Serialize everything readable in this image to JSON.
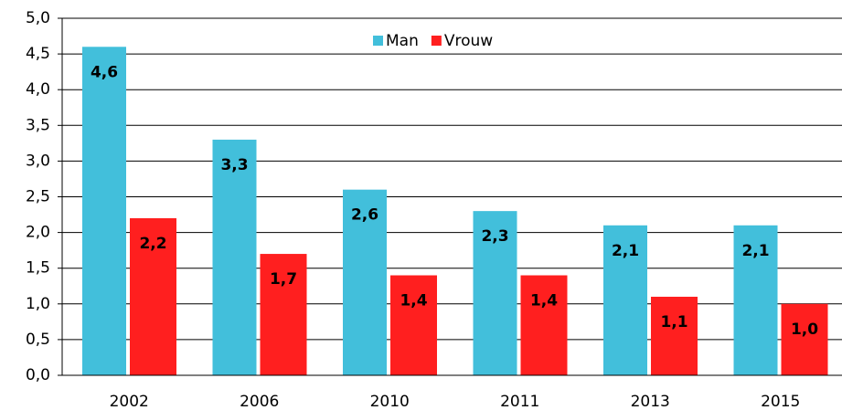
{
  "chart_data": {
    "type": "bar",
    "categories": [
      "2002",
      "2006",
      "2010",
      "2011",
      "2013",
      "2015"
    ],
    "series": [
      {
        "name": "Man",
        "color": "#42bfdb",
        "values": [
          4.6,
          3.3,
          2.6,
          2.3,
          2.1,
          2.1
        ],
        "value_labels": [
          "4,6",
          "3,3",
          "2,6",
          "2,3",
          "2,1",
          "2,1"
        ]
      },
      {
        "name": "Vrouw",
        "color": "#ff1f1f",
        "values": [
          2.2,
          1.7,
          1.4,
          1.4,
          1.1,
          1.0
        ],
        "value_labels": [
          "2,2",
          "1,7",
          "1,4",
          "1,4",
          "1,1",
          "1,0"
        ]
      }
    ],
    "ylim": [
      0,
      5
    ],
    "yticks": [
      {
        "value": 0,
        "label": "0,0"
      },
      {
        "value": 0.5,
        "label": "0,5"
      },
      {
        "value": 1,
        "label": "1,0"
      },
      {
        "value": 1.5,
        "label": "1,5"
      },
      {
        "value": 2,
        "label": "2,0"
      },
      {
        "value": 2.5,
        "label": "2,5"
      },
      {
        "value": 3,
        "label": "3,0"
      },
      {
        "value": 3.5,
        "label": "3,5"
      },
      {
        "value": 4,
        "label": "4,0"
      },
      {
        "value": 4.5,
        "label": "4,5"
      },
      {
        "value": 5,
        "label": "5,0"
      }
    ],
    "grid": true,
    "legend": "top"
  }
}
